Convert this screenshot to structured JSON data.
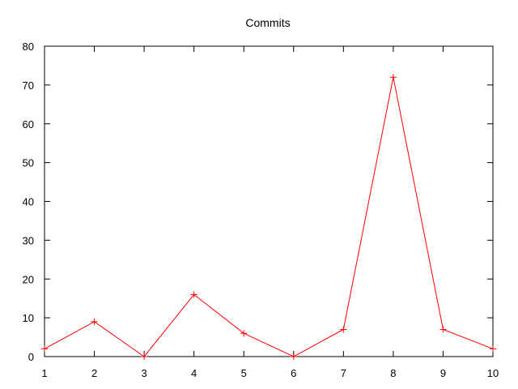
{
  "chart_data": {
    "type": "line",
    "title": "Commits",
    "xlabel": "",
    "ylabel": "",
    "xlim": [
      1,
      10
    ],
    "ylim": [
      0,
      80
    ],
    "x_ticks": [
      "1",
      "2",
      "3",
      "4",
      "5",
      "6",
      "7",
      "8",
      "9",
      "10"
    ],
    "y_ticks": [
      "0",
      "10",
      "20",
      "30",
      "40",
      "50",
      "60",
      "70",
      "80"
    ],
    "grid": false,
    "legend": "none",
    "marker": "plus",
    "color": "#ff0000",
    "series": [
      {
        "x": [
          1,
          2,
          3,
          4,
          5,
          6,
          7,
          8,
          9,
          10
        ],
        "values": [
          2,
          9,
          0,
          16,
          6,
          0,
          7,
          72,
          7,
          2
        ]
      }
    ]
  }
}
